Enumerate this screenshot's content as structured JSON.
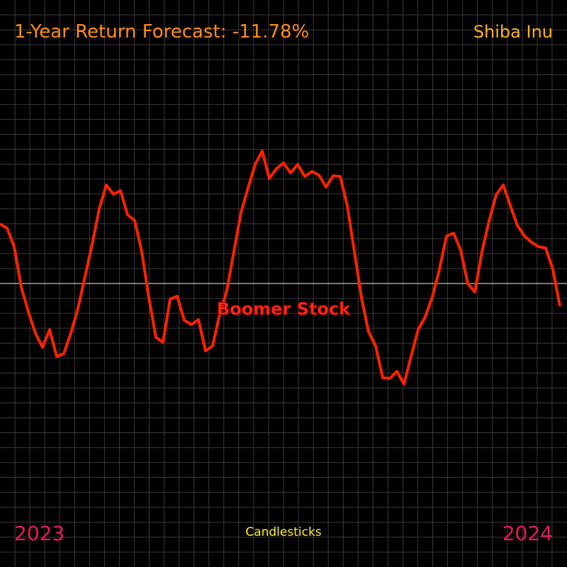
{
  "chart_data": {
    "type": "line",
    "title": "1-Year Return Forecast: -11.78%",
    "subtitle": "Shiba Inu",
    "annotation": "Boomer Stock",
    "x_label": "Candlesticks",
    "x_end_labels": [
      "2023",
      "2024"
    ],
    "series": [
      {
        "name": "Boomer Stock",
        "color": "#ff2200",
        "values": [
          84,
          78,
          52,
          -5,
          -40,
          -70,
          -90,
          -65,
          -103,
          -99,
          -70,
          -35,
          10,
          55,
          105,
          139,
          126,
          131,
          97,
          89,
          45,
          -20,
          -76,
          -83,
          -22,
          -18,
          -52,
          -58,
          -51,
          -95,
          -88,
          -43,
          -10,
          45,
          100,
          135,
          168,
          187,
          148,
          162,
          170,
          156,
          168,
          151,
          158,
          153,
          136,
          152,
          151,
          110,
          45,
          -20,
          -68,
          -88,
          -133,
          -134,
          -124,
          -142,
          -103,
          -65,
          -47,
          -19,
          20,
          67,
          71,
          47,
          0,
          -12,
          45,
          88,
          125,
          139,
          110,
          82,
          67,
          58,
          52,
          50,
          20,
          -32
        ]
      }
    ],
    "ylim": [
      -400,
      400
    ],
    "grid": true
  }
}
